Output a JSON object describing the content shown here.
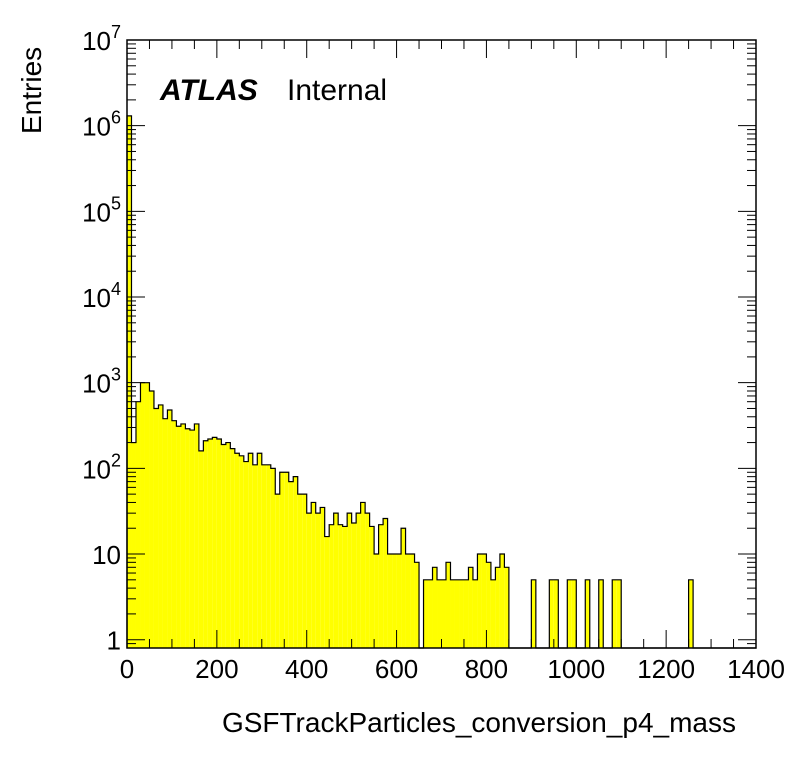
{
  "chart_data": {
    "type": "bar",
    "title": "",
    "xlabel": "GSFTrackParticles_conversion_p4_mass",
    "ylabel": "Entries",
    "xlim": [
      0,
      1400
    ],
    "ylim": [
      0.8,
      10000000
    ],
    "log_y": true,
    "bin_width": 10,
    "fill_color": "#ffff00",
    "line_color": "#000000",
    "x_tick_labels": [
      "0",
      "200",
      "400",
      "600",
      "800",
      "1000",
      "1200",
      "1400"
    ],
    "y_tick_labels": [
      {
        "value": 1,
        "base": "1",
        "exp": ""
      },
      {
        "value": 10,
        "base": "10",
        "exp": ""
      },
      {
        "value": 100,
        "base": "10",
        "exp": "2"
      },
      {
        "value": 1000,
        "base": "10",
        "exp": "3"
      },
      {
        "value": 10000,
        "base": "10",
        "exp": "4"
      },
      {
        "value": 100000,
        "base": "10",
        "exp": "5"
      },
      {
        "value": 1000000,
        "base": "10",
        "exp": "6"
      },
      {
        "value": 10000000,
        "base": "10",
        "exp": "7"
      }
    ],
    "annotation": {
      "label_bold": "ATLAS",
      "label_normal": "Internal"
    },
    "series": [
      {
        "x_start": 0,
        "values": [
          1300000,
          200,
          600,
          1000,
          1000,
          800,
          500,
          550,
          380,
          480,
          360,
          310,
          330,
          290,
          280,
          330,
          160,
          210,
          220,
          230,
          220,
          190,
          200,
          170,
          150,
          140,
          120,
          150,
          110,
          150,
          110,
          110,
          100,
          50,
          90,
          90,
          70,
          80,
          50,
          50,
          30,
          40,
          30,
          35,
          16,
          22,
          30,
          22,
          21,
          30,
          23,
          30,
          40,
          30,
          21,
          10,
          22,
          26,
          10,
          10,
          10,
          20,
          10,
          10,
          8,
          0,
          5,
          5,
          7,
          5,
          5,
          8,
          5,
          5,
          5,
          5,
          7,
          5,
          10,
          10,
          8,
          5,
          7,
          10,
          7,
          0,
          0,
          0,
          0,
          0,
          5,
          0,
          0,
          0,
          5,
          5,
          0,
          0,
          5,
          5,
          0,
          0,
          5,
          0,
          0,
          5,
          0,
          0,
          5,
          5,
          0,
          0,
          0,
          0,
          0,
          0,
          0,
          0,
          0,
          0,
          0,
          0,
          0,
          0,
          0,
          5,
          0,
          0,
          0,
          0,
          0,
          0,
          0,
          0,
          0,
          0,
          0,
          0,
          0,
          0
        ]
      }
    ]
  }
}
